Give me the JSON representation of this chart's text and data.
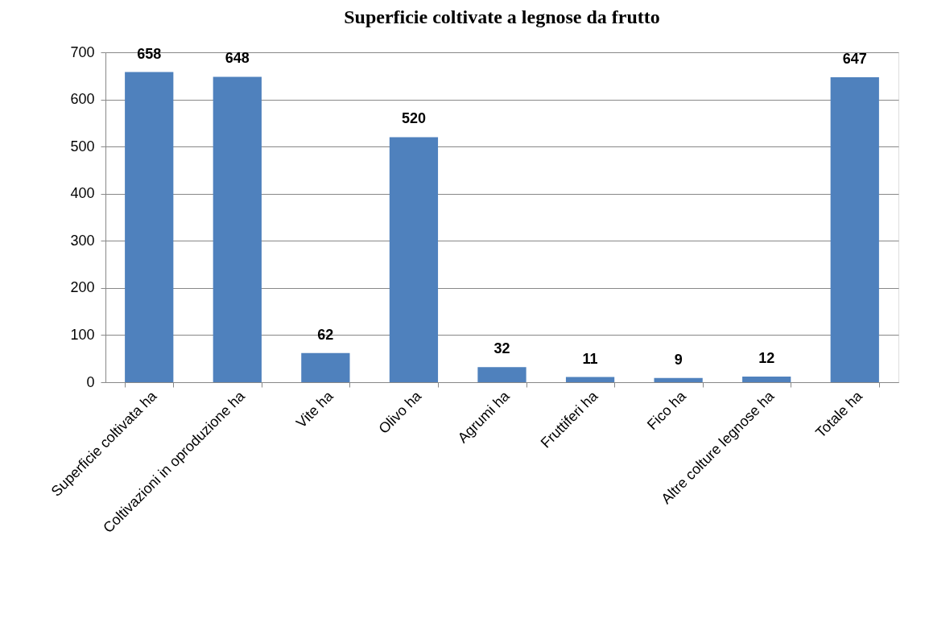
{
  "chart_data": {
    "type": "bar",
    "title": "Superficie coltivate a legnose da frutto",
    "categories": [
      "Superficie coltivata ha",
      "Coltivazioni in oproduzione ha",
      "Vite ha",
      "Olivo ha",
      "Agrumi ha",
      "Fruttiferi ha",
      "Fico ha",
      "Altre colture legnose ha",
      "Totale ha"
    ],
    "values": [
      658,
      648,
      62,
      520,
      32,
      11,
      9,
      12,
      647
    ],
    "color": "#4f81bd",
    "ylim": [
      0,
      700
    ],
    "yticks": [
      0,
      100,
      200,
      300,
      400,
      500,
      600,
      700
    ],
    "grid": "y",
    "data_labels": true
  }
}
